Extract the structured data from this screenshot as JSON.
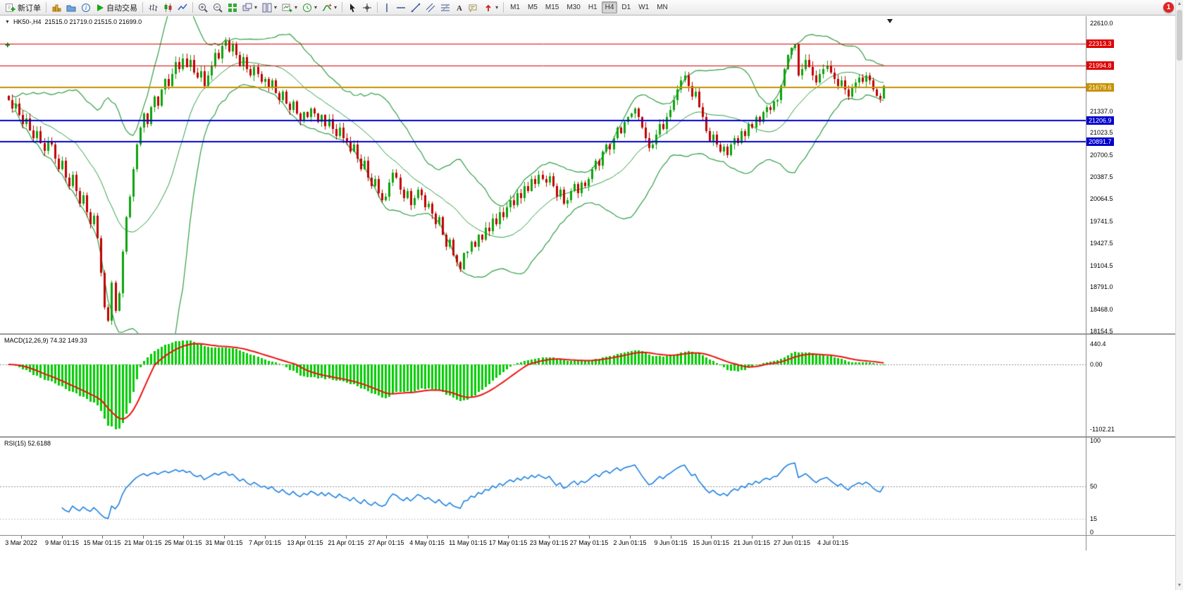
{
  "toolbar": {
    "new_order_label": "新订单",
    "autotrading_label": "自动交易",
    "timeframes": [
      "M1",
      "M5",
      "M15",
      "M30",
      "H1",
      "H4",
      "D1",
      "W1",
      "MN"
    ],
    "active_timeframe": "H4",
    "notification_badge": "1"
  },
  "chart": {
    "symbol_period": "HK50-,H4",
    "ohlc_text": "21515.0 21719.0 21515.0 21699.0",
    "hlines": [
      {
        "price": 22313.3,
        "label": "22313.3",
        "color": "#dd0000",
        "width": 1
      },
      {
        "price": 21994.8,
        "label": "21994.8",
        "color": "#dd0000",
        "width": 1
      },
      {
        "price": 21679.6,
        "label": "21679.6",
        "color": "#c89100",
        "width": 2
      },
      {
        "price": 21206.9,
        "label": "21206.9",
        "color": "#0000cc",
        "width": 2
      },
      {
        "price": 20891.7,
        "label": "20891.7",
        "color": "#0000cc",
        "width": 2
      }
    ],
    "price_axis": [
      {
        "text": "22610.0",
        "value": 22610.0
      },
      {
        "text": "21337.0",
        "value": 21337.0
      },
      {
        "text": "21023.5",
        "value": 21023.5
      },
      {
        "text": "20700.5",
        "value": 20700.5
      },
      {
        "text": "20387.5",
        "value": 20387.5
      },
      {
        "text": "20064.5",
        "value": 20064.5
      },
      {
        "text": "19741.5",
        "value": 19741.5
      },
      {
        "text": "19427.5",
        "value": 19427.5
      },
      {
        "text": "19104.5",
        "value": 19104.5
      },
      {
        "text": "18791.0",
        "value": 18791.0
      },
      {
        "text": "18468.0",
        "value": 18468.0
      },
      {
        "text": "18154.5",
        "value": 18154.5
      }
    ]
  },
  "macd_panel": {
    "label": "MACD(12,26,9) 74.32 149.33",
    "axis": [
      {
        "text": "440.4",
        "value": 440.4
      },
      {
        "text": "0.00",
        "value": 0
      },
      {
        "text": "-1102.21",
        "value": -1102.21
      }
    ]
  },
  "rsi_panel": {
    "label": "RSI(15) 52.6188",
    "axis": [
      {
        "text": "100",
        "value": 100
      },
      {
        "text": "50",
        "value": 50
      },
      {
        "text": "15",
        "value": 15
      },
      {
        "text": "0",
        "value": 0
      }
    ]
  },
  "time_axis": [
    "3 Mar 2022",
    "9 Mar 01:15",
    "15 Mar 01:15",
    "21 Mar 01:15",
    "25 Mar 01:15",
    "31 Mar 01:15",
    "7 Apr 01:15",
    "13 Apr 01:15",
    "21 Apr 01:15",
    "27 Apr 01:15",
    "4 May 01:15",
    "11 May 01:15",
    "17 May 01:15",
    "23 May 01:15",
    "27 May 01:15",
    "2 Jun 01:15",
    "9 Jun 01:15",
    "15 Jun 01:15",
    "21 Jun 01:15",
    "27 Jun 01:15",
    "4 Jul 01:15"
  ],
  "colors": {
    "bull": "#0ca30c",
    "bear": "#c00000",
    "bollinger": "#2f9e44",
    "macd_hist": "#00cc00",
    "macd_signal": "#ee1111",
    "rsi_line": "#1e82e0",
    "grid": "#909090"
  },
  "chart_data": {
    "type": "candlestick",
    "title": "HK50- H4",
    "symbol": "HK50-",
    "timeframe": "H4",
    "current_bar": {
      "open": 21515.0,
      "high": 21719.0,
      "low": 21515.0,
      "close": 21699.0
    },
    "ylim": [
      18154.5,
      22610.0
    ],
    "closes": [
      21500,
      21380,
      21450,
      21280,
      21150,
      21230,
      21060,
      20950,
      21050,
      20880,
      20760,
      20900,
      20850,
      20650,
      20500,
      20620,
      20380,
      20250,
      20420,
      20180,
      20000,
      20120,
      19880,
      19700,
      19820,
      19500,
      19000,
      18500,
      18300,
      18850,
      18450,
      18700,
      19300,
      19800,
      20100,
      20500,
      20850,
      21100,
      21300,
      21150,
      21400,
      21550,
      21420,
      21650,
      21800,
      21700,
      21880,
      22050,
      21950,
      22100,
      21980,
      22080,
      21900,
      21820,
      21920,
      21700,
      21850,
      22000,
      22180,
      22100,
      22280,
      22350,
      22200,
      22300,
      22150,
      22000,
      22120,
      21950,
      21850,
      21980,
      21880,
      21760,
      21800,
      21680,
      21780,
      21600,
      21500,
      21620,
      21450,
      21350,
      21480,
      21300,
      21200,
      21320,
      21250,
      21380,
      21300,
      21180,
      21280,
      21120,
      21220,
      21080,
      20980,
      21100,
      20950,
      20900,
      20750,
      20850,
      20650,
      20500,
      20620,
      20380,
      20250,
      20350,
      20150,
      20050,
      20100,
      20300,
      20450,
      20380,
      20200,
      20080,
      20180,
      19980,
      20080,
      20200,
      20120,
      19950,
      20000,
      19850,
      19700,
      19800,
      19550,
      19380,
      19480,
      19250,
      19150,
      19050,
      19280,
      19300,
      19450,
      19380,
      19550,
      19480,
      19650,
      19600,
      19780,
      19700,
      19880,
      19800,
      19950,
      20050,
      19980,
      20150,
      20080,
      20250,
      20180,
      20350,
      20280,
      20420,
      20350,
      20300,
      20400,
      20250,
      20100,
      20200,
      20000,
      20050,
      20180,
      20280,
      20150,
      20300,
      20250,
      20350,
      20500,
      20620,
      20550,
      20750,
      20850,
      20780,
      20950,
      21100,
      21020,
      21180,
      21250,
      21300,
      21380,
      21250,
      21100,
      20950,
      20800,
      20850,
      21000,
      21150,
      21080,
      21250,
      21350,
      21500,
      21650,
      21780,
      21850,
      21700,
      21550,
      21620,
      21400,
      21250,
      21050,
      20900,
      21000,
      20850,
      20750,
      20820,
      20700,
      20850,
      20950,
      20880,
      21050,
      20980,
      21150,
      21100,
      21250,
      21180,
      21320,
      21400,
      21350,
      21480,
      21500,
      21700,
      21950,
      22150,
      22250,
      22300,
      21850,
      21950,
      22080,
      21980,
      21850,
      21750,
      21880,
      21950,
      22000,
      21900,
      21800,
      21700,
      21780,
      21650,
      21550,
      21680,
      21750,
      21820,
      21760,
      21850,
      21780,
      21650,
      21560,
      21515,
      21699
    ],
    "overlays": [
      {
        "name": "Bollinger Bands",
        "period": 20,
        "deviation": 2
      },
      {
        "name": "MACD",
        "fast": 12,
        "slow": 26,
        "signal": 9,
        "current": [
          74.32,
          149.33
        ],
        "yticks": [
          440.4,
          0.0,
          -1102.21
        ]
      },
      {
        "name": "RSI",
        "period": 15,
        "current": 52.6188,
        "yticks": [
          100,
          50,
          15,
          0
        ]
      },
      {
        "name": "horizontal_lines",
        "values": [
          22313.3,
          21994.8,
          21679.6,
          21206.9,
          20891.7
        ]
      }
    ]
  }
}
